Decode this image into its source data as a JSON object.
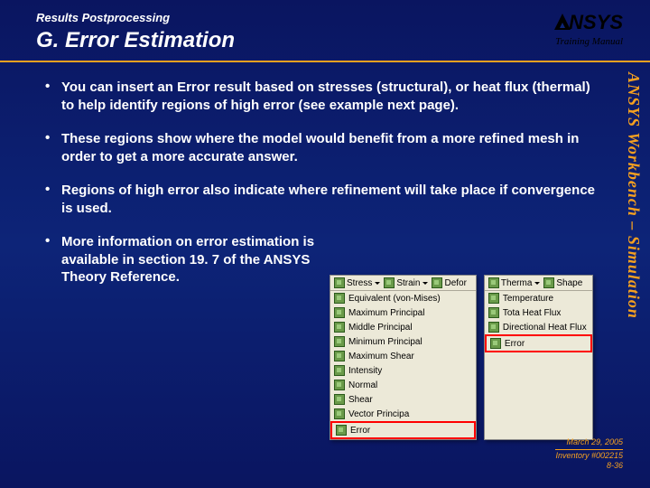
{
  "header": {
    "supertitle": "Results Postprocessing",
    "title": "G. Error Estimation",
    "logo_text": "NSYS",
    "training_manual": "Training Manual"
  },
  "bullets": [
    "You can insert an Error result based on stresses (structural), or heat flux (thermal) to help identify regions of high error (see example next page).",
    "These regions show where the model would benefit from a more refined mesh in order to get a more accurate answer.",
    "Regions of high error also indicate where refinement will take place if convergence is used.",
    "More information on error estimation is available in section 19. 7 of the ANSYS Theory Reference."
  ],
  "sidetext": "ANSYS Workbench – Simulation",
  "menu_left": {
    "toolbar": [
      {
        "label": "Stress"
      },
      {
        "label": "Strain"
      },
      {
        "label": "Defor"
      }
    ],
    "items": [
      "Equivalent (von-Mises)",
      "Maximum Principal",
      "Middle Principal",
      "Minimum Principal",
      "Maximum Shear",
      "Intensity",
      "Normal",
      "Shear",
      "Vector Principa",
      "Error"
    ],
    "highlight_index": 9
  },
  "menu_right": {
    "toolbar": [
      {
        "label": "Therma"
      },
      {
        "label": "Shape"
      }
    ],
    "items": [
      "Temperature",
      "Tota Heat Flux",
      "Directional Heat Flux",
      "Error"
    ],
    "highlight_index": 3
  },
  "footer": {
    "date": "March 29, 2005",
    "inventory": "Inventory #002215",
    "page": "8-36"
  },
  "colors": {
    "accent": "#f5a020",
    "background_top": "#0a1560",
    "background_mid": "#0d2478",
    "text": "#ffffff",
    "menu_bg": "#ece9d8",
    "highlight_border": "#ff0000"
  }
}
